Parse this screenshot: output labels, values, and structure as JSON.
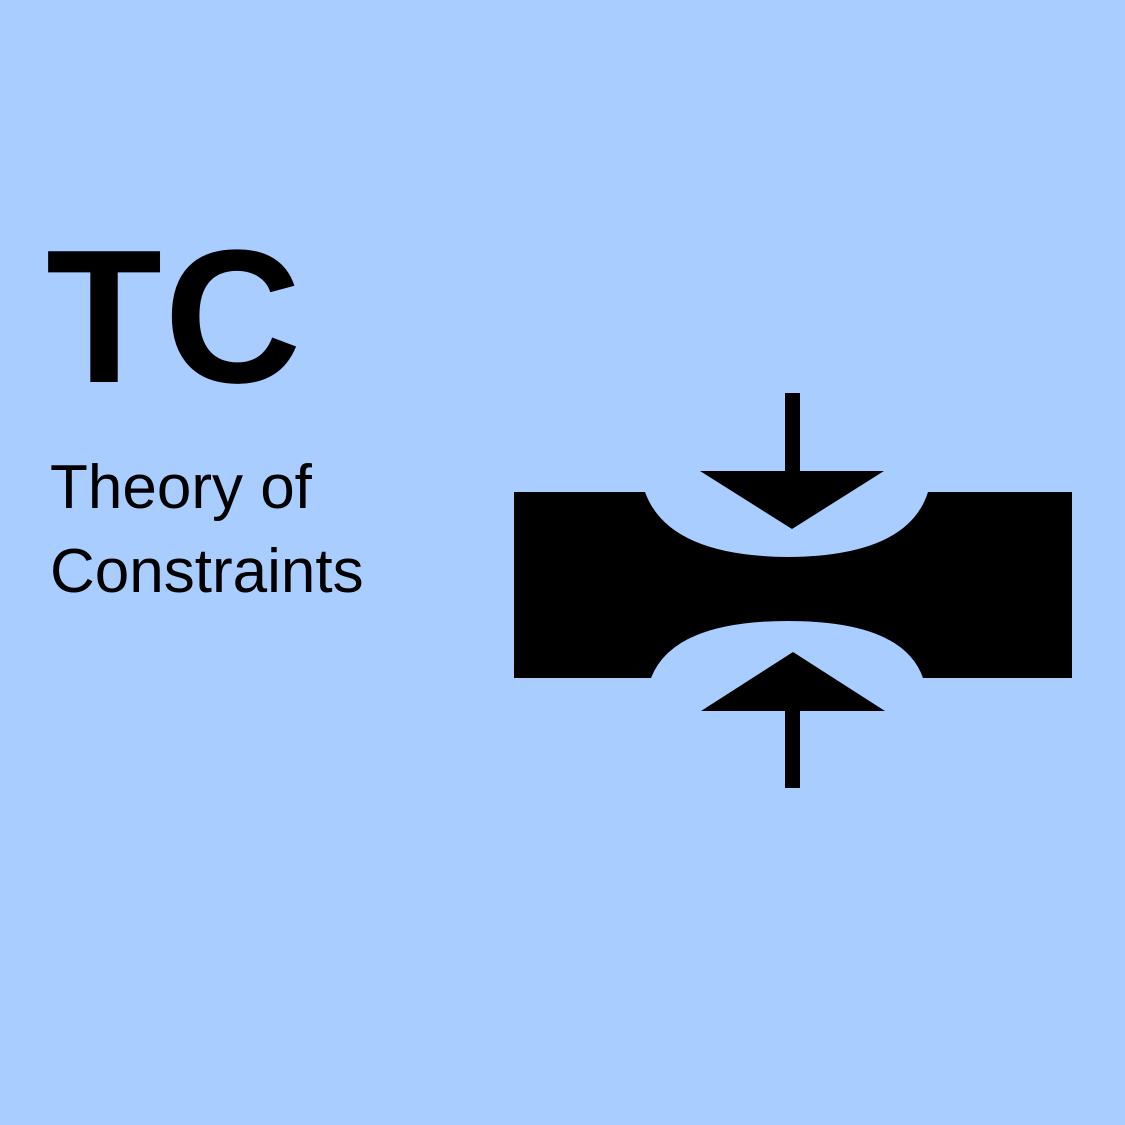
{
  "background_color": "#a9cdff",
  "foreground_color": "#000000",
  "logo": {
    "abbreviation": "TC",
    "title_line_1": "Theory of",
    "title_line_2": "Constraints"
  },
  "emblem": {
    "icon": "bottleneck-constriction-icon"
  }
}
